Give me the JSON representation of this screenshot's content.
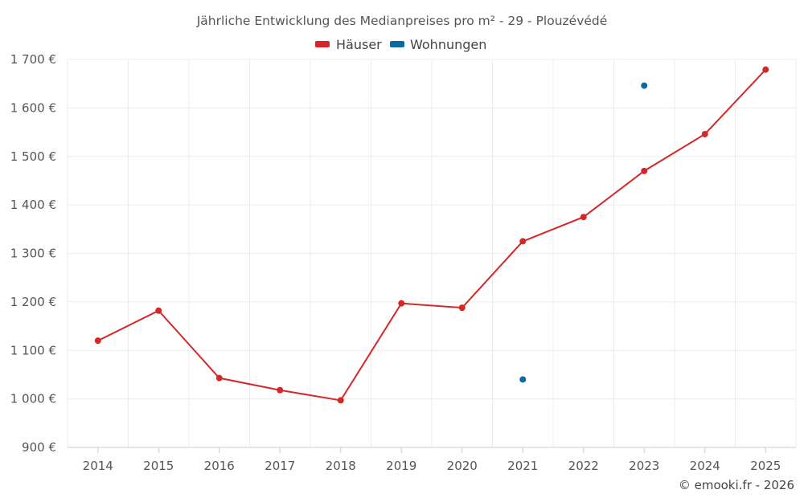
{
  "chart_data": {
    "type": "line",
    "title": "Jährliche Entwicklung des Medianpreises pro m² - 29 - Plouzévédé",
    "xlabel": "",
    "ylabel": "",
    "categories": [
      "2014",
      "2015",
      "2016",
      "2017",
      "2018",
      "2019",
      "2020",
      "2021",
      "2022",
      "2023",
      "2024",
      "2025"
    ],
    "ylim": [
      900,
      1700
    ],
    "yticks": [
      900,
      1000,
      1100,
      1200,
      1300,
      1400,
      1500,
      1600,
      1700
    ],
    "ytick_labels": [
      "900 €",
      "1 000 €",
      "1 100 €",
      "1 200 €",
      "1 300 €",
      "1 400 €",
      "1 500 €",
      "1 600 €",
      "1 700 €"
    ],
    "grid": true,
    "legend_position": "top-center",
    "series": [
      {
        "name": "Häuser",
        "color": "#d62728",
        "values": [
          1120,
          1182,
          1043,
          1018,
          997,
          1197,
          1188,
          1325,
          1375,
          1470,
          1546,
          1679
        ]
      },
      {
        "name": "Wohnungen",
        "color": "#0a6aa1",
        "values": [
          null,
          null,
          null,
          null,
          null,
          null,
          null,
          1040,
          null,
          1646,
          null,
          null
        ]
      }
    ]
  },
  "credit": "© emooki.fr - 2026"
}
